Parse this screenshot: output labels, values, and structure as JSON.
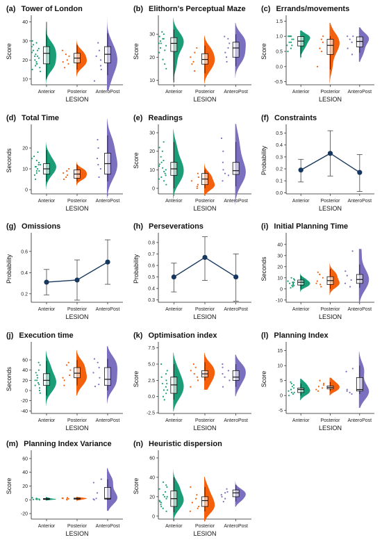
{
  "colors": {
    "Anterior": "#1b9e77",
    "Posterior": "#f4600c",
    "AnteroPost": "#7b6fc0",
    "line": "#17375e"
  },
  "chart_data": [
    {
      "id": "a",
      "tag": "(a)",
      "title": "Tower of London",
      "type": "raincloud",
      "ylabel": "Score",
      "xlabel": "LESION",
      "categories": [
        "Anterior",
        "Posterior",
        "AnteroPost"
      ],
      "ylim": [
        7,
        42
      ],
      "yticks": [
        10,
        20,
        30,
        40
      ],
      "groups": [
        {
          "points": [
            14,
            15,
            16,
            17,
            18,
            19,
            20,
            21,
            22,
            23,
            24,
            25,
            26,
            27,
            28,
            29,
            30,
            18,
            22,
            25
          ],
          "box": [
            10,
            18,
            23.5,
            27,
            40
          ]
        },
        {
          "points": [
            16,
            18,
            20,
            22,
            23,
            25,
            19
          ],
          "box": [
            15,
            18.5,
            21,
            23.5,
            28
          ]
        },
        {
          "points": [
            9,
            15,
            17,
            20,
            22,
            25,
            29
          ],
          "box": [
            12,
            18.5,
            23,
            27,
            34
          ]
        }
      ]
    },
    {
      "id": "b",
      "tag": "(b)",
      "title": "Elithorn's Perceptual Maze",
      "type": "raincloud",
      "ylabel": "Score",
      "xlabel": "LESION",
      "categories": [
        "Anterior",
        "Posterior",
        "AnteroPost"
      ],
      "ylim": [
        8,
        37
      ],
      "yticks": [
        10,
        20,
        30
      ],
      "groups": [
        {
          "points": [
            15,
            17,
            19,
            22,
            24,
            25,
            26,
            27,
            28,
            29,
            30,
            31,
            23,
            26,
            28
          ],
          "box": [
            9,
            22.5,
            26,
            28.5,
            32
          ]
        },
        {
          "points": [
            14,
            17,
            18,
            20,
            22,
            24
          ],
          "box": [
            13,
            17,
            19,
            21.5,
            25
          ]
        },
        {
          "points": [
            18,
            20,
            22,
            24,
            26,
            28,
            29
          ],
          "box": [
            16,
            20,
            24,
            26.5,
            30
          ]
        }
      ]
    },
    {
      "id": "c",
      "tag": "(c)",
      "title": "Errands/movements",
      "type": "raincloud",
      "ylabel": "Score",
      "xlabel": "LESION",
      "categories": [
        "Anterior",
        "Posterior",
        "AnteroPost"
      ],
      "ylim": [
        -0.6,
        1.6
      ],
      "yticks": [
        -0.5,
        0.0,
        0.5,
        1.0,
        1.5
      ],
      "groups": [
        {
          "points": [
            0.5,
            0.6,
            0.7,
            0.8,
            0.8,
            0.9,
            1.0,
            1.0,
            1.0,
            1.0,
            0.9,
            0.7,
            1.0
          ],
          "box": [
            0.3,
            0.68,
            0.84,
            0.99,
            1.0
          ]
        },
        {
          "points": [
            0.0,
            0.5,
            0.6,
            0.8,
            1.0,
            0.9
          ],
          "box": [
            -0.1,
            0.4,
            0.7,
            0.9,
            1.0
          ]
        },
        {
          "points": [
            0.4,
            0.6,
            0.8,
            1.0,
            1.0,
            0.9
          ],
          "box": [
            0.45,
            0.65,
            0.83,
            0.98,
            1.0
          ]
        }
      ]
    },
    {
      "id": "d",
      "tag": "(d)",
      "title": "Total Time",
      "type": "raincloud",
      "ylabel": "Seconds",
      "xlabel": "LESION",
      "categories": [
        "Anterior",
        "Posterior",
        "AnteroPost"
      ],
      "ylim": [
        -2,
        30
      ],
      "yticks": [
        0,
        10,
        20
      ],
      "groups": [
        {
          "points": [
            5,
            7,
            8,
            9,
            10,
            11,
            12,
            13,
            14,
            15,
            16,
            18,
            9,
            12,
            11
          ],
          "box": [
            4,
            7.5,
            10,
            12.5,
            19
          ]
        },
        {
          "points": [
            5,
            6,
            7,
            8,
            9,
            10
          ],
          "box": [
            4,
            5.5,
            7.5,
            9.5,
            12
          ]
        },
        {
          "points": [
            6,
            10,
            12,
            15,
            20,
            24
          ],
          "box": [
            4,
            7.5,
            12.5,
            17.5,
            26
          ]
        }
      ]
    },
    {
      "id": "e",
      "tag": "(e)",
      "title": "Readings",
      "type": "raincloud",
      "ylabel": "Score",
      "xlabel": "LESION",
      "categories": [
        "Anterior",
        "Posterior",
        "AnteroPost"
      ],
      "ylim": [
        -3,
        33
      ],
      "yticks": [
        0,
        10,
        20,
        30
      ],
      "groups": [
        {
          "points": [
            2,
            4,
            5,
            6,
            8,
            9,
            10,
            11,
            12,
            13,
            15,
            17,
            20,
            22,
            25,
            7,
            14
          ],
          "box": [
            0,
            7,
            10.5,
            14,
            25
          ]
        },
        {
          "points": [
            0,
            1,
            2,
            4,
            6,
            8
          ],
          "box": [
            0,
            2,
            5,
            8,
            10
          ]
        },
        {
          "points": [
            4,
            7,
            8,
            10,
            14,
            20,
            27
          ],
          "box": [
            1,
            7.5,
            9.5,
            14,
            25
          ]
        }
      ]
    },
    {
      "id": "f",
      "tag": "(f)",
      "title": "Constraints",
      "type": "line",
      "ylabel": "Probability",
      "xlabel": "LESION",
      "categories": [
        "Anterior",
        "Posterior",
        "AnteroPost"
      ],
      "ylim": [
        -0.01,
        0.55
      ],
      "yticks": [
        0.0,
        0.1,
        0.2,
        0.3,
        0.4,
        0.5
      ],
      "values": [
        0.19,
        0.33,
        0.17
      ],
      "lower": [
        0.09,
        0.14,
        0.01
      ],
      "upper": [
        0.28,
        0.52,
        0.32
      ]
    },
    {
      "id": "g",
      "tag": "(g)",
      "title": "Omissions",
      "type": "line",
      "ylabel": "Probability",
      "xlabel": "LESION",
      "categories": [
        "Anterior",
        "Posterior",
        "AnteroPost"
      ],
      "ylim": [
        0.12,
        0.75
      ],
      "yticks": [
        0.2,
        0.4,
        0.6
      ],
      "values": [
        0.31,
        0.33,
        0.5
      ],
      "lower": [
        0.19,
        0.14,
        0.29
      ],
      "upper": [
        0.43,
        0.52,
        0.71
      ]
    },
    {
      "id": "h",
      "tag": "(h)",
      "title": "Perseverations",
      "type": "line",
      "ylabel": "Probability",
      "xlabel": "LESION",
      "categories": [
        "Anterior",
        "Posterior",
        "AnteroPost"
      ],
      "ylim": [
        0.28,
        0.86
      ],
      "yticks": [
        0.3,
        0.4,
        0.5,
        0.6,
        0.7,
        0.8
      ],
      "values": [
        0.5,
        0.67,
        0.5
      ],
      "lower": [
        0.37,
        0.47,
        0.29
      ],
      "upper": [
        0.62,
        0.85,
        0.7
      ]
    },
    {
      "id": "i",
      "tag": "(i)",
      "title": "Initial Planning Time",
      "type": "raincloud",
      "ylabel": "Seconds",
      "xlabel": "LESION",
      "categories": [
        "Anterior",
        "Posterior",
        "AnteroPost"
      ],
      "ylim": [
        -12,
        48
      ],
      "yticks": [
        -10,
        0,
        10,
        20,
        30,
        40
      ],
      "groups": [
        {
          "points": [
            1,
            2,
            3,
            4,
            5,
            6,
            7,
            8,
            9,
            3,
            5,
            6,
            10
          ],
          "box": [
            0,
            3.5,
            6,
            8,
            12
          ]
        },
        {
          "points": [
            2,
            4,
            5,
            7,
            10,
            13,
            15
          ],
          "box": [
            0,
            4,
            7.5,
            11,
            18
          ]
        },
        {
          "points": [
            2,
            5,
            8,
            12,
            16,
            34
          ],
          "box": [
            1,
            5,
            8.5,
            13,
            22
          ]
        }
      ]
    },
    {
      "id": "j",
      "tag": "(j)",
      "title": "Execution time",
      "type": "raincloud",
      "ylabel": "Seconds",
      "xlabel": "LESION",
      "categories": [
        "Anterior",
        "Posterior",
        "AnteroPost"
      ],
      "ylim": [
        -45,
        90
      ],
      "yticks": [
        -40,
        -20,
        0,
        20,
        40,
        60
      ],
      "groups": [
        {
          "points": [
            -5,
            0,
            5,
            10,
            15,
            20,
            25,
            30,
            35,
            40,
            50,
            55,
            20,
            12
          ],
          "box": [
            -10,
            10,
            20,
            33,
            58
          ]
        },
        {
          "points": [
            10,
            20,
            25,
            30,
            40,
            50,
            55
          ],
          "box": [
            10,
            25,
            34,
            45,
            60
          ]
        },
        {
          "points": [
            8,
            12,
            25,
            35,
            45,
            55,
            62
          ],
          "box": [
            0,
            10,
            22,
            45,
            62
          ]
        }
      ]
    },
    {
      "id": "k",
      "tag": "(k)",
      "title": "Optimisation index",
      "type": "raincloud",
      "ylabel": "Score",
      "xlabel": "LESION",
      "categories": [
        "Anterior",
        "Posterior",
        "AnteroPost"
      ],
      "ylim": [
        -2.6,
        8
      ],
      "yticks": [
        -2.5,
        0.0,
        2.5,
        5.0,
        7.5
      ],
      "groups": [
        {
          "points": [
            -0.5,
            0,
            0.5,
            1,
            1.5,
            2,
            2.5,
            3,
            3.5,
            4,
            5,
            1,
            2
          ],
          "box": [
            -0.5,
            0.5,
            1.8,
            3,
            5
          ]
        },
        {
          "points": [
            1.5,
            2.5,
            3,
            3.5,
            4,
            4.5,
            5
          ],
          "box": [
            2.5,
            3,
            3.5,
            4,
            5.3
          ]
        },
        {
          "points": [
            1.5,
            2.5,
            3,
            3.5,
            4,
            4.5,
            5
          ],
          "box": [
            1.5,
            2.5,
            3,
            4,
            5
          ]
        }
      ]
    },
    {
      "id": "l",
      "tag": "(l)",
      "title": "Planning Index",
      "type": "raincloud",
      "ylabel": "Score",
      "xlabel": "LESION",
      "categories": [
        "Anterior",
        "Posterior",
        "AnteroPost"
      ],
      "ylim": [
        -6,
        17
      ],
      "yticks": [
        -5,
        0,
        5,
        10,
        15
      ],
      "groups": [
        {
          "points": [
            0,
            0.5,
            1,
            1.5,
            2,
            2.5,
            3,
            3.5,
            4,
            4.5,
            1,
            2
          ],
          "box": [
            0,
            1,
            2,
            2.5,
            4
          ]
        },
        {
          "points": [
            1.5,
            2,
            2.5,
            3,
            3.5,
            4,
            5
          ],
          "box": [
            1.5,
            2.2,
            2.7,
            3.2,
            4.5
          ]
        },
        {
          "points": [
            0.5,
            1,
            1.5,
            2,
            8,
            9
          ],
          "box": [
            0.5,
            1.5,
            2,
            6,
            10
          ]
        }
      ]
    },
    {
      "id": "m",
      "tag": "(m)",
      "title": "Planning Index Variance",
      "type": "raincloud",
      "ylabel": "Score",
      "xlabel": "LESION",
      "categories": [
        "Anterior",
        "Posterior",
        "AnteroPost"
      ],
      "ylim": [
        -28,
        68
      ],
      "yticks": [
        -20,
        0,
        20,
        40,
        60
      ],
      "groups": [
        {
          "points": [
            0,
            0.5,
            1,
            1.5,
            2,
            3,
            0.5,
            1
          ],
          "box": [
            0,
            0.5,
            1,
            2,
            3
          ]
        },
        {
          "points": [
            0,
            1,
            2,
            3,
            2.5,
            1.5
          ],
          "box": [
            0,
            1,
            1.5,
            2.5,
            3
          ]
        },
        {
          "points": [
            0,
            1,
            2,
            10,
            25,
            30
          ],
          "box": [
            0,
            1,
            2,
            18,
            30
          ]
        }
      ]
    },
    {
      "id": "n",
      "tag": "(n)",
      "title": "Heuristic dispersion",
      "type": "raincloud",
      "ylabel": "Score",
      "xlabel": "LESION",
      "categories": [
        "Anterior",
        "Posterior",
        "AnteroPost"
      ],
      "ylim": [
        -3,
        65
      ],
      "yticks": [
        0,
        20,
        40,
        60
      ],
      "groups": [
        {
          "points": [
            5,
            8,
            10,
            12,
            14,
            16,
            18,
            20,
            22,
            25,
            28,
            30,
            32,
            35,
            15,
            20
          ],
          "box": [
            4,
            10,
            18,
            26,
            40
          ]
        },
        {
          "points": [
            5,
            8,
            10,
            14,
            18,
            22,
            30
          ],
          "box": [
            5,
            10,
            16,
            20,
            30
          ]
        },
        {
          "points": [
            15,
            18,
            20,
            22,
            24,
            25,
            28
          ],
          "box": [
            15,
            20,
            24,
            27,
            32
          ]
        }
      ]
    }
  ]
}
